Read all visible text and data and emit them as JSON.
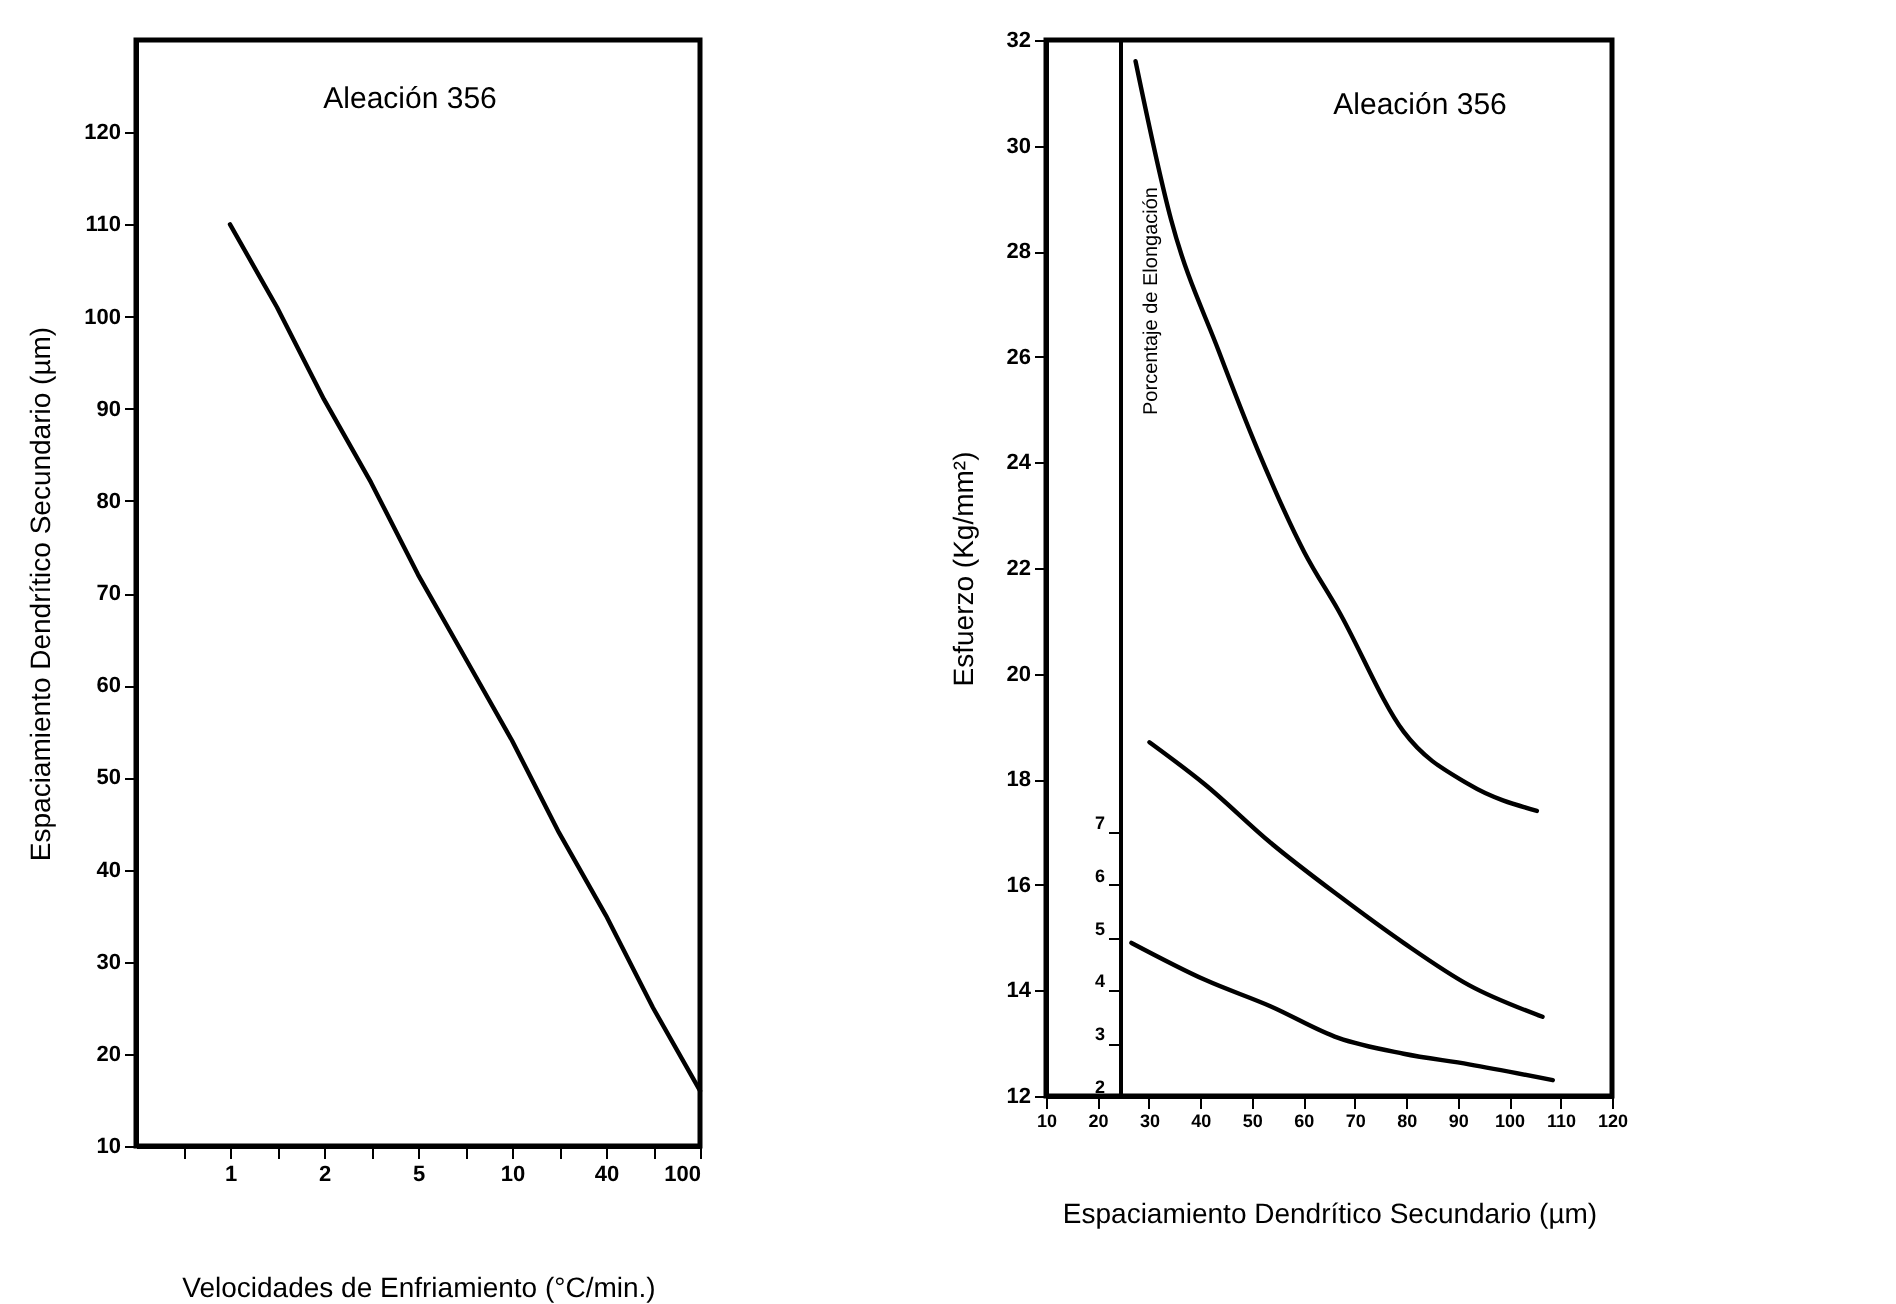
{
  "chart_data": [
    {
      "type": "line",
      "annotations": [
        "Aleación 356"
      ],
      "xlabel": "Velocidades de Enfriamiento  (°C/min.)",
      "ylabel": "Espaciamiento Dendrítico Secundario  (µm)",
      "categories": [
        null,
        "1",
        null,
        "2",
        null,
        "5",
        null,
        "10",
        null,
        "40",
        null,
        "100"
      ],
      "series": [
        {
          "color": "#000000",
          "values": [
            null,
            110,
            101,
            91,
            82,
            72,
            63,
            54,
            44,
            35,
            25,
            16
          ]
        }
      ],
      "ylim": [
        10,
        130
      ],
      "yticks": [
        10,
        20,
        30,
        40,
        50,
        60,
        70,
        80,
        90,
        100,
        110,
        120
      ]
    },
    {
      "type": "line",
      "annotations": [
        "Aleación 356"
      ],
      "xlabel": "Espaciamiento Dendrítico Secundario  (µm)",
      "ylabel": "Esfuerzo  (Kg/mm²)",
      "y2label": "Porcentaje de Elongación",
      "xlim": [
        10,
        120
      ],
      "xticks": [
        10,
        20,
        30,
        40,
        50,
        60,
        70,
        80,
        90,
        100,
        110,
        120
      ],
      "ylim": [
        12,
        32
      ],
      "yticks": [
        12,
        14,
        16,
        18,
        20,
        22,
        24,
        26,
        28,
        30,
        32
      ],
      "y2lim": [
        2,
        22
      ],
      "y2ticks": [
        2,
        3,
        4,
        5,
        6,
        7
      ],
      "series": [
        {
          "color": "#000000",
          "x": [
            27.4,
            34.3,
            43.6,
            51.3,
            60.2,
            66.8,
            79.5,
            92.2,
            105.4
          ],
          "values": [
            31.6,
            28.6,
            26.1,
            24.2,
            22.3,
            21.2,
            18.9,
            17.9,
            17.4
          ]
        },
        {
          "color": "#000000",
          "x": [
            30.1,
            40.9,
            53.6,
            66.8,
            79.5,
            92.2,
            106.5
          ],
          "values": [
            18.7,
            17.9,
            16.8,
            15.8,
            14.9,
            14.1,
            13.5
          ]
        },
        {
          "color": "#000000",
          "axis": "y2",
          "x": [
            26.6,
            40.9,
            53.6,
            66.8,
            79.5,
            92.2,
            108.5
          ],
          "values": [
            4.9,
            4.2,
            3.7,
            3.1,
            2.8,
            2.6,
            2.3
          ]
        }
      ]
    }
  ]
}
